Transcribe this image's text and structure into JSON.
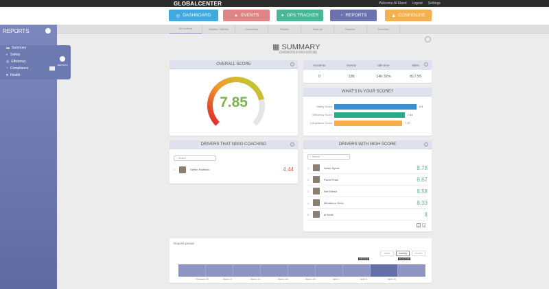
{
  "header": {
    "logo": "GLOBALCENTER",
    "welcome": "Welcome Al Eland",
    "logout": "Logout",
    "settings": "Settings"
  },
  "nav": [
    {
      "label": "DASHBOARD",
      "color": "#3fa9e0"
    },
    {
      "label": "EVENTS",
      "color": "#e08585"
    },
    {
      "label": "GPS TRACKER",
      "color": "#46b896"
    },
    {
      "label": "REPORTS",
      "color": "#6a73ae"
    },
    {
      "label": "CONFIGURE",
      "color": "#f7b04f"
    }
  ],
  "subtabs": [
    "All Locations",
    "Software, Switches",
    "Connections",
    "Vehicles",
    "Trade Up",
    "Business",
    "Timesheet"
  ],
  "sidebar": {
    "title": "REPORTS",
    "items": [
      "Summary",
      "Safety",
      "Efficiency",
      "Compliance",
      "Health"
    ],
    "badge": "REPORTS"
  },
  "summary": {
    "title": "SUMMARY",
    "range": "(04/08/2018-04/14/2018)"
  },
  "overall": {
    "title": "OVERALL SCORE",
    "score": "7.85",
    "fraction": 0.785
  },
  "stats": {
    "headers": [
      "Incidents",
      "Events",
      "Idle time",
      "Miles"
    ],
    "values": [
      "0",
      "186",
      "14h 32m",
      "817.55"
    ]
  },
  "whats": {
    "title": "WHAT'S IN YOUR SCORE?",
    "bars": [
      {
        "label": "Safety Score",
        "value": "8.9",
        "num": 8.9,
        "color": "#3d8fcf"
      },
      {
        "label": "Efficiency Score",
        "value": "7.64",
        "num": 7.64,
        "color": "#27ad8a"
      },
      {
        "label": "Compliance Score",
        "value": "7.37",
        "num": 7.37,
        "color": "#f7ad4a"
      }
    ]
  },
  "coaching": {
    "title": "DRIVERS THAT NEED COACHING",
    "search": "Search",
    "drivers": [
      {
        "rank": "1",
        "name": "Stefan Radecku",
        "score": "4.44"
      }
    ]
  },
  "high": {
    "title": "DRIVERS WITH HIGH SCORE",
    "search": "Search",
    "drivers": [
      {
        "rank": "1",
        "name": "Nolan Kyess",
        "score": "8.78"
      },
      {
        "rank": "2",
        "name": "Pavin Fesel",
        "score": "8.67"
      },
      {
        "rank": "3",
        "name": "Neil Eltesh",
        "score": "8.58"
      },
      {
        "rank": "4",
        "name": "Mihalkevu Getin",
        "score": "8.33"
      },
      {
        "rank": "5",
        "name": "al Brutti",
        "score": "8"
      }
    ],
    "pages": [
      "1",
      "2"
    ]
  },
  "period": {
    "title": "Reports period",
    "buttons": [
      "daily",
      "weekly",
      "month"
    ],
    "flags": [
      "4/8/2018",
      "4/14/2018"
    ],
    "ticks": [
      "February 25",
      "March 4",
      "March 11",
      "March 18",
      "March 25",
      "April 1",
      "April 8",
      "April 15"
    ]
  }
}
